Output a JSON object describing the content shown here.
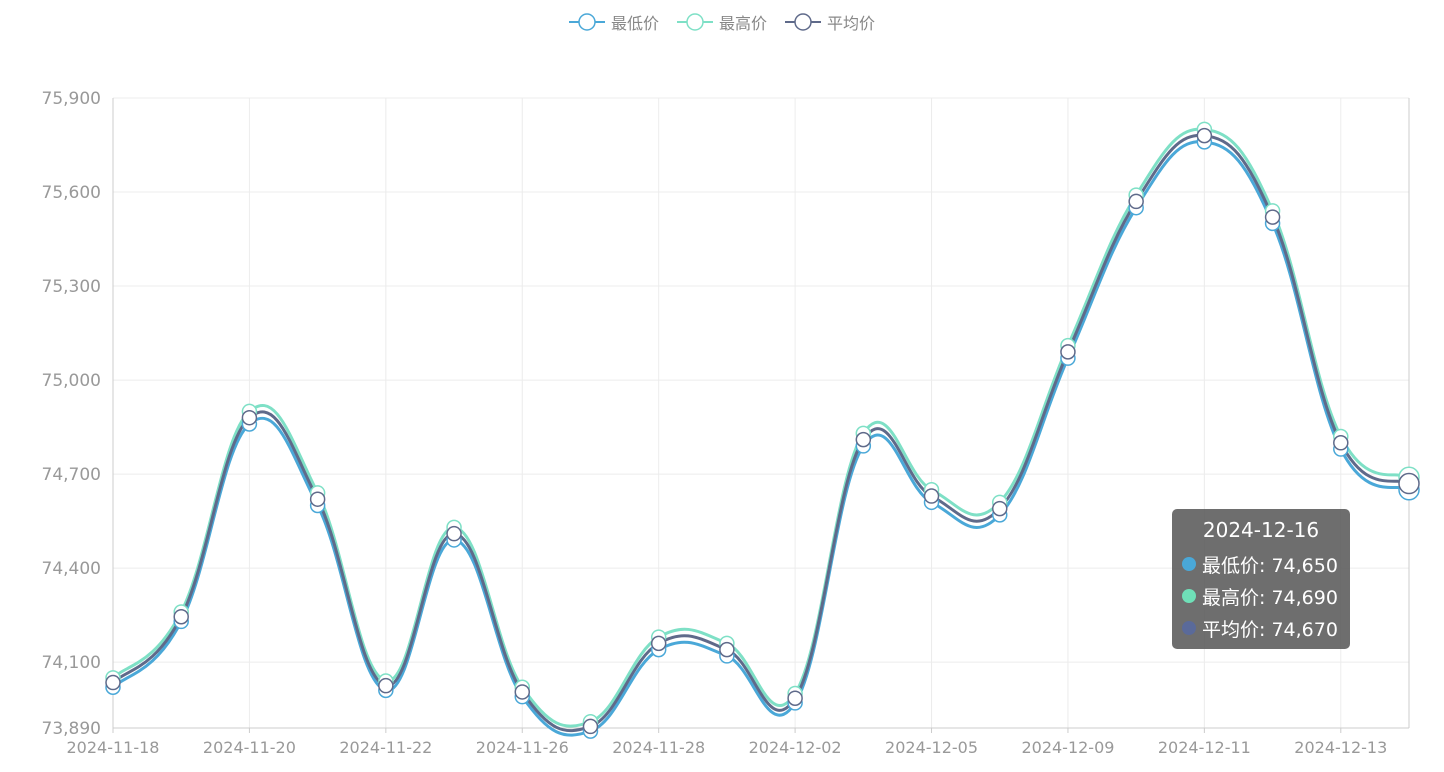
{
  "chart_data": {
    "type": "line",
    "x": [
      "2024-11-18",
      "2024-11-19",
      "2024-11-20",
      "2024-11-21",
      "2024-11-22",
      "2024-11-25",
      "2024-11-26",
      "2024-11-27",
      "2024-11-28",
      "2024-11-29",
      "2024-12-02",
      "2024-12-03",
      "2024-12-05",
      "2024-12-06",
      "2024-12-09",
      "2024-12-10",
      "2024-12-11",
      "2024-12-12",
      "2024-12-13",
      "2024-12-16"
    ],
    "xtick_labels": [
      "2024-11-18",
      "2024-11-20",
      "2024-11-22",
      "2024-11-26",
      "2024-11-28",
      "2024-12-02",
      "2024-12-05",
      "2024-12-09",
      "2024-12-11",
      "2024-12-13"
    ],
    "series": [
      {
        "name": "最低价",
        "color": "#4aa8d8",
        "values": [
          74020,
          74230,
          74860,
          74600,
          74010,
          74490,
          73990,
          73880,
          74140,
          74120,
          73970,
          74790,
          74610,
          74570,
          75070,
          75550,
          75760,
          75500,
          74780,
          74650
        ]
      },
      {
        "name": "最高价",
        "color": "#7ee0c6",
        "values": [
          74050,
          74260,
          74900,
          74640,
          74040,
          74530,
          74020,
          73910,
          74180,
          74160,
          74000,
          74830,
          74650,
          74610,
          75110,
          75590,
          75800,
          75540,
          74820,
          74690
        ]
      },
      {
        "name": "平均价",
        "color": "#5f6a8a",
        "values": [
          74035,
          74245,
          74880,
          74620,
          74025,
          74510,
          74005,
          73895,
          74160,
          74140,
          73985,
          74810,
          74630,
          74590,
          75090,
          75570,
          75780,
          75520,
          74800,
          74670
        ]
      }
    ],
    "ylim": [
      73890,
      75900
    ],
    "yticks": [
      73890,
      74100,
      74400,
      74700,
      75000,
      75300,
      75600,
      75900
    ],
    "ytick_labels": [
      "73,890",
      "74,100",
      "74,400",
      "74,700",
      "75,000",
      "75,300",
      "75,600",
      "75,900"
    ],
    "grid": true,
    "legend_position": "top-center"
  },
  "tooltip": {
    "title": "2024-12-16",
    "rows": [
      {
        "label": "最低价: 74,650",
        "color": "#4aa8d8"
      },
      {
        "label": "最高价: 74,690",
        "color": "#6fe0b8"
      },
      {
        "label": "平均价: 74,670",
        "color": "#5a6a9a"
      }
    ]
  }
}
